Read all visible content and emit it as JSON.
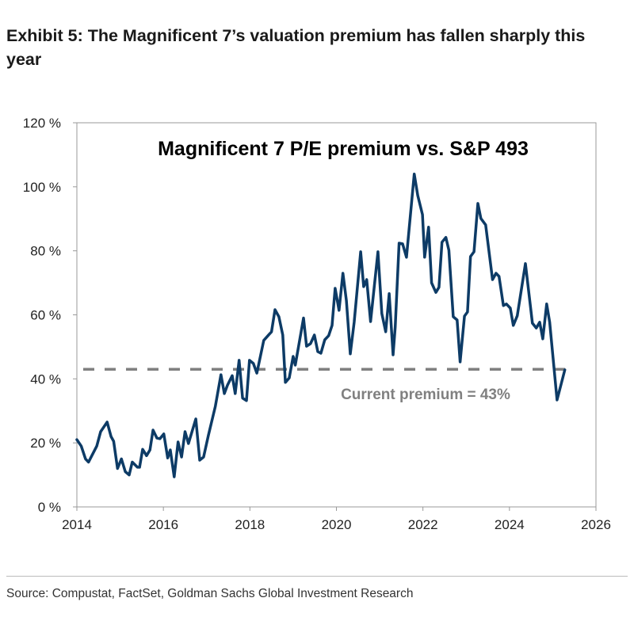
{
  "header": {
    "title": "Exhibit 5: The Magnificent 7’s valuation premium has fallen sharply this year"
  },
  "footer": {
    "source": "Source: Compustat, FactSet, Goldman Sachs Global Investment Research"
  },
  "chart_data": {
    "type": "line",
    "title": "Magnificent 7 P/E premium vs. S&P 493",
    "xlabel": "",
    "ylabel": "",
    "xlim": [
      2014,
      2026
    ],
    "ylim": [
      0,
      120
    ],
    "x_ticks": [
      "2014",
      "2016",
      "2018",
      "2020",
      "2022",
      "2024",
      "2026"
    ],
    "x_tick_values": [
      2014,
      2016,
      2018,
      2020,
      2022,
      2024,
      2026
    ],
    "y_ticks": [
      "0 %",
      "20 %",
      "40 %",
      "60 %",
      "80 %",
      "100 %",
      "120 %"
    ],
    "y_tick_values": [
      0,
      20,
      40,
      60,
      80,
      100,
      120
    ],
    "grid": false,
    "line_color": "#0d3b66",
    "reference_line": {
      "value": 43,
      "label": "Current premium = 43%",
      "color": "#808080",
      "style": "dashed"
    },
    "series": [
      {
        "x": [
          2014.0,
          2014.1,
          2014.2,
          2014.27,
          2014.46,
          2014.55,
          2014.7,
          2014.79,
          2014.85,
          2014.94,
          2015.03,
          2015.12,
          2015.21,
          2015.28,
          2015.4,
          2015.45,
          2015.52,
          2015.61,
          2015.69,
          2015.76,
          2015.85,
          2015.92,
          2016.01,
          2016.1,
          2016.16,
          2016.25,
          2016.34,
          2016.42,
          2016.5,
          2016.58,
          2016.75,
          2016.84,
          2016.93,
          2017.04,
          2017.2,
          2017.33,
          2017.41,
          2017.48,
          2017.59,
          2017.66,
          2017.75,
          2017.83,
          2017.92,
          2017.99,
          2018.08,
          2018.16,
          2018.32,
          2018.45,
          2018.5,
          2018.58,
          2018.67,
          2018.76,
          2018.82,
          2018.91,
          2019.0,
          2019.05,
          2019.24,
          2019.31,
          2019.4,
          2019.49,
          2019.57,
          2019.64,
          2019.73,
          2019.82,
          2019.9,
          2019.97,
          2020.06,
          2020.15,
          2020.23,
          2020.32,
          2020.41,
          2020.56,
          2020.63,
          2020.7,
          2020.79,
          2020.96,
          2021.05,
          2021.14,
          2021.22,
          2021.31,
          2021.36,
          2021.45,
          2021.53,
          2021.62,
          2021.8,
          2021.88,
          2021.99,
          2022.04,
          2022.13,
          2022.2,
          2022.3,
          2022.37,
          2022.44,
          2022.53,
          2022.6,
          2022.7,
          2022.79,
          2022.86,
          2022.96,
          2023.03,
          2023.1,
          2023.18,
          2023.27,
          2023.34,
          2023.45,
          2023.61,
          2023.69,
          2023.76,
          2023.86,
          2023.93,
          2024.02,
          2024.09,
          2024.18,
          2024.37,
          2024.53,
          2024.62,
          2024.7,
          2024.77,
          2024.86,
          2024.93,
          2025.1,
          2025.28
        ],
        "values": [
          21,
          19,
          15,
          14,
          19,
          23.5,
          26.5,
          22,
          20.5,
          12,
          15,
          11,
          10,
          14,
          12.4,
          12.4,
          18,
          16,
          17.8,
          24,
          21.5,
          21.3,
          22.8,
          15.3,
          17.8,
          9.4,
          20.3,
          15.6,
          23.5,
          19.8,
          27.5,
          14.6,
          15.6,
          22.3,
          31.4,
          41.3,
          35.4,
          38,
          41,
          35.4,
          45.8,
          34,
          33.2,
          45.8,
          44.8,
          41.8,
          52,
          54,
          54.7,
          61.6,
          59.4,
          53.7,
          38.9,
          40.3,
          47,
          44.3,
          59,
          50.2,
          51,
          53.7,
          48.5,
          48,
          52.2,
          53.5,
          56.7,
          68.3,
          61.4,
          73,
          64.4,
          47.8,
          57.7,
          79.7,
          68.8,
          71,
          57.9,
          79.7,
          60.4,
          54.7,
          66.6,
          47.5,
          56.2,
          82.4,
          82.2,
          78,
          104,
          97.3,
          91.3,
          78,
          87.4,
          70,
          67,
          68.6,
          82.7,
          84.2,
          80.2,
          59.4,
          58.4,
          45.3,
          59.6,
          60.9,
          78.2,
          79.7,
          94.8,
          90.1,
          88.1,
          71,
          73,
          72,
          62.9,
          63.4,
          62.1,
          56.7,
          59.7,
          76,
          57.4,
          55.9,
          57.7,
          52.5,
          63.4,
          57.7,
          33.4,
          42.8
        ]
      }
    ]
  }
}
